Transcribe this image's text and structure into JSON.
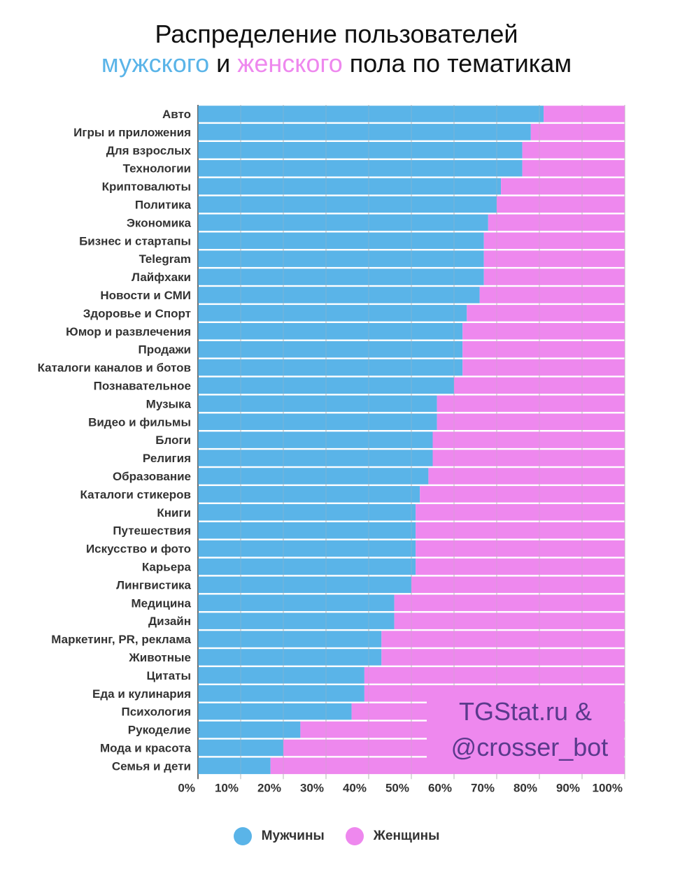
{
  "title": {
    "line1": "Распределение пользователей",
    "word_male": "мужского",
    "word_and": "и",
    "word_female": "женского",
    "line2_rest": "пола по тематикам"
  },
  "colors": {
    "male": "#5ab4e8",
    "female": "#ee88ee",
    "title_male": "#5ab4e8",
    "title_female": "#ee88ee",
    "watermark": "#5a3a8c"
  },
  "watermark": {
    "line1": "TGStat.ru &",
    "line2": "@crosser_bot"
  },
  "legend": {
    "male": "Мужчины",
    "female": "Женщины"
  },
  "chart_data": {
    "type": "bar",
    "orientation": "horizontal",
    "stacked": true,
    "categories": [
      "Авто",
      "Игры и приложения",
      "Для взрослых",
      "Технологии",
      "Криптовалюты",
      "Политика",
      "Экономика",
      "Бизнес и стартапы",
      "Telegram",
      "Лайфхаки",
      "Новости и СМИ",
      "Здоровье и Спорт",
      "Юмор и развлечения",
      "Продажи",
      "Каталоги каналов и ботов",
      "Познавательное",
      "Музыка",
      "Видео и фильмы",
      "Блоги",
      "Религия",
      "Образование",
      "Каталоги стикеров",
      "Книги",
      "Путешествия",
      "Искусство и фото",
      "Карьера",
      "Лингвистика",
      "Медицина",
      "Дизайн",
      "Маркетинг, PR, реклама",
      "Животные",
      "Цитаты",
      "Еда и кулинария",
      "Психология",
      "Рукоделие",
      "Мода и красота",
      "Семья и дети"
    ],
    "series": [
      {
        "name": "Мужчины",
        "values": [
          81,
          78,
          76,
          76,
          71,
          70,
          68,
          67,
          67,
          67,
          66,
          63,
          62,
          62,
          62,
          60,
          56,
          56,
          55,
          55,
          54,
          52,
          51,
          51,
          51,
          51,
          50,
          46,
          46,
          43,
          43,
          39,
          39,
          36,
          24,
          20,
          17
        ]
      },
      {
        "name": "Женщины",
        "values": [
          19,
          22,
          24,
          24,
          29,
          30,
          32,
          33,
          33,
          33,
          34,
          37,
          38,
          38,
          38,
          40,
          44,
          44,
          45,
          45,
          46,
          48,
          49,
          49,
          49,
          49,
          50,
          54,
          54,
          57,
          57,
          61,
          61,
          64,
          76,
          80,
          83
        ]
      }
    ],
    "x_ticks": [
      "0%",
      "10%",
      "20%",
      "30%",
      "40%",
      "50%",
      "60%",
      "70%",
      "80%",
      "90%",
      "100%"
    ],
    "xlim": [
      0,
      100
    ],
    "grid": true,
    "legend_position": "bottom"
  }
}
